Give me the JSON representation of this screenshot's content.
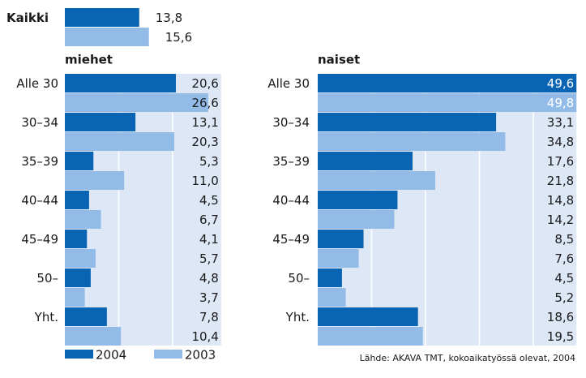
{
  "chart_data": [
    {
      "type": "bar",
      "categories": [
        "Kaikki"
      ],
      "xlim": [
        0,
        29
      ],
      "grid": false,
      "series": [
        {
          "name": "2004",
          "color": "#0a64b4",
          "values": [
            13.8
          ],
          "value_labels": [
            "13,8"
          ]
        },
        {
          "name": "2003",
          "color": "#92bbe8",
          "values": [
            15.6
          ],
          "value_labels": [
            "15,6"
          ]
        }
      ]
    },
    {
      "type": "bar",
      "title": "miehet",
      "categories": [
        "Alle 30",
        "30–34",
        "35–39",
        "40–44",
        "45–49",
        "50–",
        "Yht."
      ],
      "xlim": [
        0,
        29
      ],
      "xticks": [
        10,
        20
      ],
      "grid": true,
      "series": [
        {
          "color": "#0a64b4",
          "values": [
            20.6,
            13.1,
            5.3,
            4.5,
            4.1,
            4.8,
            7.8
          ],
          "value_labels": [
            "20,6",
            "13,1",
            "5,3",
            "4,5",
            "4,1",
            "4,8",
            "7,8"
          ]
        },
        {
          "color": "#92bbe8",
          "values": [
            26.6,
            20.3,
            11.0,
            6.7,
            5.7,
            3.7,
            10.4
          ],
          "value_labels": [
            "26,6",
            "20,3",
            "11,0",
            "6,7",
            "5,7",
            "3,7",
            "10,4"
          ]
        }
      ]
    },
    {
      "type": "bar",
      "title": "naiset",
      "categories": [
        "Alle 30",
        "30–34",
        "35–39",
        "40–44",
        "45–49",
        "50–",
        "Yht."
      ],
      "xlim": [
        0,
        48
      ],
      "xticks": [
        10,
        20,
        30,
        40
      ],
      "grid": true,
      "series": [
        {
          "color": "#0a64b4",
          "values": [
            49.6,
            33.1,
            17.6,
            14.8,
            8.5,
            4.5,
            18.6
          ],
          "value_labels": [
            "49,6",
            "33,1",
            "17,6",
            "14,8",
            "8,5",
            "4,5",
            "18,6"
          ]
        },
        {
          "color": "#92bbe8",
          "values": [
            49.8,
            34.8,
            21.8,
            14.2,
            7.6,
            5.2,
            19.5
          ],
          "value_labels": [
            "49,8",
            "34,8",
            "21,8",
            "14,2",
            "7,6",
            "5,2",
            "19,5"
          ]
        }
      ]
    }
  ],
  "source": "Lähde: AKAVA TMT, kokoaikatyössä olevat, 2004"
}
